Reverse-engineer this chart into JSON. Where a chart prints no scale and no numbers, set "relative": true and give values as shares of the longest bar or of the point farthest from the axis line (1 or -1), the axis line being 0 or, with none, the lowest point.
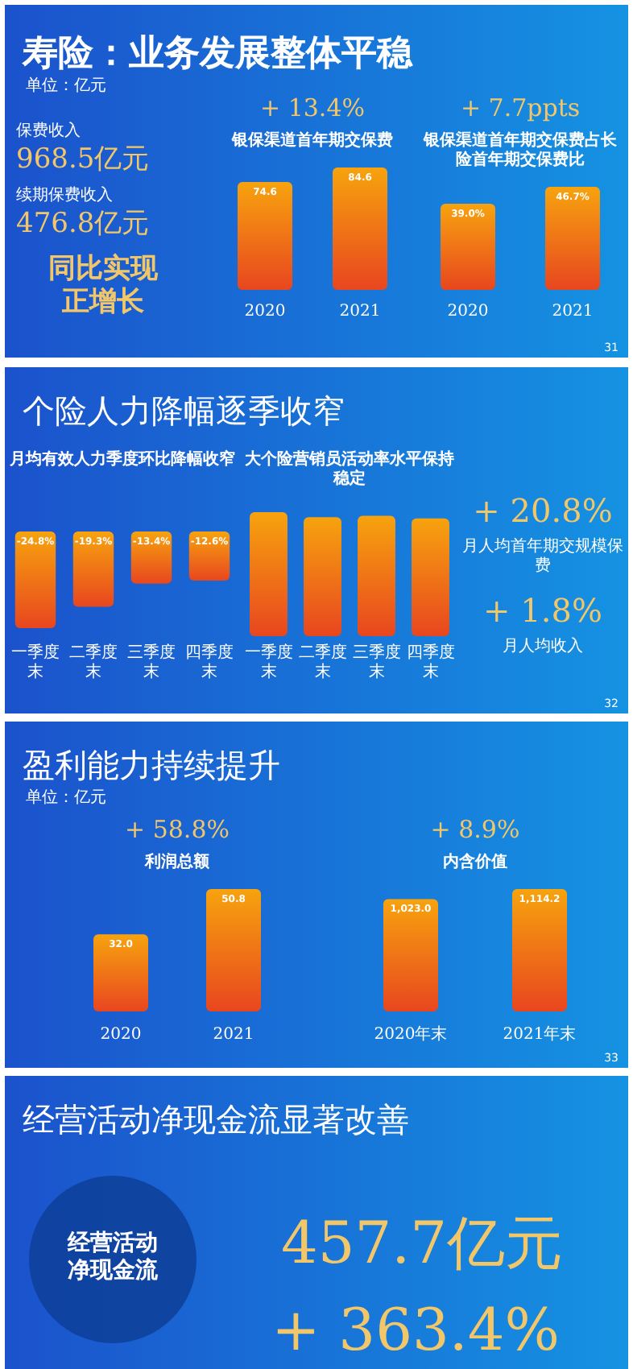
{
  "chart_data": [
    {
      "type": "other",
      "title": "寿险：业务发展整体平稳",
      "subtitle": "单位：亿元",
      "annotations": [
        "保费收入",
        "968.5亿元",
        "续期保费收入",
        "476.8亿元",
        "同比实现正增长",
        "31"
      ]
    },
    {
      "type": "bar",
      "title": "银保渠道首年期交保费",
      "annotations": [
        "+ 13.4%"
      ],
      "categories": [
        "2020",
        "2021"
      ],
      "values": [
        74.6,
        84.6
      ],
      "value_labels": [
        "74.6",
        "84.6"
      ],
      "color": "#f7a30e"
    },
    {
      "type": "bar",
      "title": "银保渠道首年期交保费占长险首年期交保费比",
      "annotations": [
        "+ 7.7ppts"
      ],
      "categories": [
        "2020",
        "2021"
      ],
      "values": [
        39.0,
        46.7
      ],
      "value_labels": [
        "39.0%",
        "46.7%"
      ],
      "color": "#f7a30e"
    },
    {
      "type": "other",
      "title": "个险人力降幅逐季收窄",
      "annotations": [
        "32"
      ]
    },
    {
      "type": "bar",
      "title": "月均有效人力季度环比降幅收窄",
      "categories": [
        "一季度末",
        "二季度末",
        "三季度末",
        "四季度末"
      ],
      "values": [
        -24.8,
        -19.3,
        -13.4,
        -12.6
      ],
      "value_labels": [
        "-24.8%",
        "-19.3%",
        "-13.4%",
        "-12.6%"
      ],
      "color": "#f7a30e"
    },
    {
      "type": "bar",
      "title": "大个险营销员活动率水平保持稳定",
      "categories": [
        "一季度末",
        "二季度末",
        "三季度末",
        "四季度末"
      ],
      "values": [
        1,
        0.96,
        0.97,
        0.95
      ],
      "relative": true,
      "color": "#f7a30e"
    },
    {
      "type": "other",
      "annotations": [
        "+ 20.8%",
        "月人均首年期交规模保费",
        "+ 1.8%",
        "月人均收入"
      ]
    },
    {
      "type": "other",
      "title": "盈利能力持续提升",
      "subtitle": "单位：亿元",
      "annotations": [
        "33"
      ]
    },
    {
      "type": "bar",
      "title": "利润总额",
      "annotations": [
        "+ 58.8%"
      ],
      "categories": [
        "2020",
        "2021"
      ],
      "values": [
        32.0,
        50.8
      ],
      "value_labels": [
        "32.0",
        "50.8"
      ],
      "color": "#f7a30e"
    },
    {
      "type": "bar",
      "title": "内含价值",
      "annotations": [
        "+ 8.9%"
      ],
      "categories": [
        "2020年末",
        "2021年末"
      ],
      "values": [
        1023.0,
        1114.2
      ],
      "value_labels": [
        "1,023.0",
        "1,114.2"
      ],
      "color": "#f7a30e"
    },
    {
      "type": "other",
      "title": "经营活动净现金流显著改善",
      "annotations": [
        "经营活动净现金流",
        "457.7亿元",
        "+ 363.4%"
      ]
    }
  ]
}
